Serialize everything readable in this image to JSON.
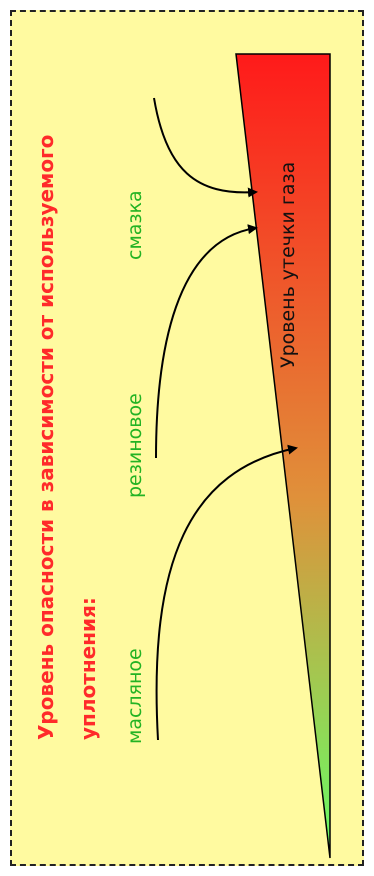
{
  "title": {
    "line1": "Уровень опасности в зависимости от используемого",
    "line2": "уплотнения:"
  },
  "seals": [
    {
      "label": "масляное"
    },
    {
      "label": "резиновое"
    },
    {
      "label": "смазка"
    }
  ],
  "scale_label": "Уровень утечки газа",
  "colors": {
    "background": "#fffaa0",
    "title": "#ff2a2a",
    "seal_label": "#23b323",
    "gradient_top": "#ff1a1a",
    "gradient_bottom": "#66ff66"
  }
}
